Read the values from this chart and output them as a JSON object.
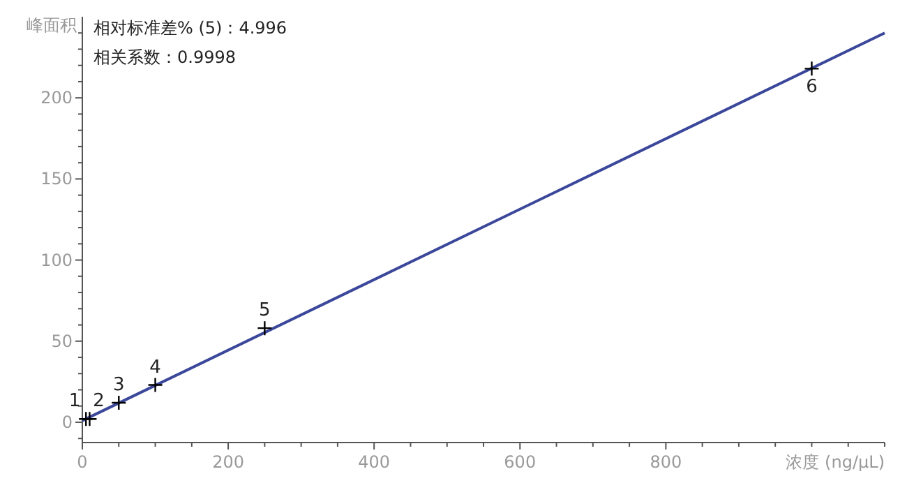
{
  "chart_data": {
    "type": "scatter",
    "xlabel": "浓度 (ng/μL)",
    "ylabel": "峰面积",
    "xlim": [
      0,
      1100
    ],
    "xticks": [
      0,
      {
        "value": 50,
        "label": null
      },
      {
        "value": 100,
        "label": null
      },
      {
        "value": 150,
        "label": null
      },
      200,
      {
        "value": 250,
        "label": null
      },
      {
        "value": 300,
        "label": null
      },
      {
        "value": 350,
        "label": null
      },
      400,
      {
        "value": 450,
        "label": null
      },
      {
        "value": 500,
        "label": null
      },
      {
        "value": 550,
        "label": null
      },
      600,
      {
        "value": 650,
        "label": null
      },
      {
        "value": 700,
        "label": null
      },
      {
        "value": 750,
        "label": null
      },
      800,
      {
        "value": 850,
        "label": null
      },
      {
        "value": 900,
        "label": null
      },
      {
        "value": 950,
        "label": null
      },
      {
        "value": 1000,
        "label": null
      },
      {
        "value": 1050,
        "label": null
      },
      {
        "value": 1100,
        "label": null
      }
    ],
    "ylim": [
      -12.5,
      250
    ],
    "yticks": [
      {
        "value": -10,
        "label": null
      },
      0,
      {
        "value": 10,
        "label": null
      },
      {
        "value": 20,
        "label": null
      },
      {
        "value": 30,
        "label": null
      },
      {
        "value": 40,
        "label": null
      },
      50,
      {
        "value": 60,
        "label": null
      },
      {
        "value": 70,
        "label": null
      },
      {
        "value": 80,
        "label": null
      },
      {
        "value": 90,
        "label": null
      },
      100,
      {
        "value": 110,
        "label": null
      },
      {
        "value": 120,
        "label": null
      },
      {
        "value": 130,
        "label": null
      },
      {
        "value": 140,
        "label": null
      },
      150,
      {
        "value": 160,
        "label": null
      },
      {
        "value": 170,
        "label": null
      },
      {
        "value": 180,
        "label": null
      },
      {
        "value": 190,
        "label": null
      },
      200,
      {
        "value": 210,
        "label": null
      },
      {
        "value": 220,
        "label": null
      },
      {
        "value": 230,
        "label": null
      },
      {
        "value": 240,
        "label": null
      }
    ],
    "grid": false,
    "series": [
      {
        "type": "line",
        "color": "#3b479a",
        "x": [
          0,
          1100
        ],
        "values": [
          1,
          240
        ],
        "marker": "none"
      },
      {
        "color": "#000000",
        "x": [
          5,
          10,
          50,
          100,
          250,
          1000
        ],
        "values": [
          2,
          2,
          12,
          23,
          58,
          218
        ],
        "marker": "cross"
      }
    ],
    "annotations": [
      "相对标准差% (5)：4.996",
      "相关系数：0.9998",
      {
        "text": "1",
        "x": 5,
        "y": 2
      },
      {
        "text": "2",
        "x": 10,
        "y": 2
      },
      {
        "text": "3",
        "x": 50,
        "y": 12
      },
      {
        "text": "4",
        "x": 100,
        "y": 23
      },
      {
        "text": "5",
        "x": 250,
        "y": 58
      },
      {
        "text": "6",
        "x": 1000,
        "y": 218
      }
    ]
  }
}
